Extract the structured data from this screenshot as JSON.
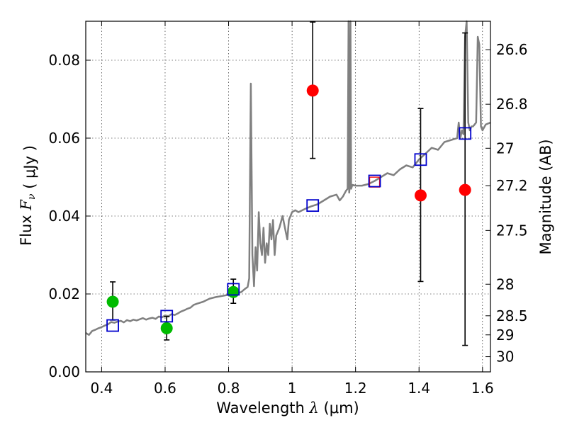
{
  "chart_data": {
    "type": "scatter",
    "xlabel": "Wavelength",
    "xlabel_math": "λ",
    "xlabel_unit": "(μm)",
    "ylabel_left": "Flux",
    "ylabel_left_math": "F",
    "ylabel_left_sub": "ν",
    "ylabel_left_unit": "( μJy )",
    "ylabel_right": "Magnitude (AB)",
    "xlim": [
      0.35,
      1.625
    ],
    "ylim": [
      0,
      0.09
    ],
    "grid": true,
    "x_ticks": [
      0.4,
      0.6,
      0.8,
      1.0,
      1.2,
      1.4,
      1.6
    ],
    "x_tick_labels": [
      "0.4",
      "0.6",
      "0.8",
      "1",
      "1.2",
      "1.4",
      "1.6"
    ],
    "y_ticks": [
      0.0,
      0.02,
      0.04,
      0.06,
      0.08
    ],
    "y_tick_labels": [
      "0.00",
      "0.02",
      "0.04",
      "0.06",
      "0.08"
    ],
    "right_ticks": [
      {
        "label": "26.6",
        "flux": 0.0827
      },
      {
        "label": "26.8",
        "flux": 0.0687
      },
      {
        "label": "27",
        "flux": 0.0574
      },
      {
        "label": "27.2",
        "flux": 0.0478
      },
      {
        "label": "27.5",
        "flux": 0.0363
      },
      {
        "label": "28",
        "flux": 0.0225
      },
      {
        "label": "28.5",
        "flux": 0.0144
      },
      {
        "label": "29",
        "flux": 0.0095
      },
      {
        "label": "30",
        "flux": 0.0039
      }
    ],
    "model_spectrum": {
      "name": "template spectrum",
      "color": "#808080",
      "x": [
        0.35,
        0.36,
        0.37,
        0.38,
        0.39,
        0.4,
        0.41,
        0.42,
        0.43,
        0.44,
        0.45,
        0.46,
        0.47,
        0.48,
        0.49,
        0.5,
        0.51,
        0.52,
        0.53,
        0.54,
        0.55,
        0.56,
        0.57,
        0.58,
        0.59,
        0.6,
        0.61,
        0.62,
        0.63,
        0.64,
        0.65,
        0.66,
        0.67,
        0.68,
        0.69,
        0.7,
        0.72,
        0.74,
        0.76,
        0.78,
        0.8,
        0.82,
        0.84,
        0.85,
        0.86,
        0.865,
        0.87,
        0.875,
        0.88,
        0.885,
        0.89,
        0.895,
        0.9,
        0.905,
        0.91,
        0.915,
        0.92,
        0.925,
        0.93,
        0.935,
        0.94,
        0.945,
        0.95,
        0.96,
        0.97,
        0.98,
        0.985,
        0.99,
        1.0,
        1.01,
        1.02,
        1.04,
        1.06,
        1.08,
        1.1,
        1.12,
        1.14,
        1.15,
        1.16,
        1.17,
        1.175,
        1.178,
        1.18,
        1.182,
        1.184,
        1.186,
        1.19,
        1.2,
        1.22,
        1.24,
        1.26,
        1.28,
        1.3,
        1.32,
        1.34,
        1.36,
        1.38,
        1.4,
        1.42,
        1.44,
        1.46,
        1.48,
        1.5,
        1.52,
        1.525,
        1.53,
        1.535,
        1.54,
        1.545,
        1.55,
        1.555,
        1.56,
        1.565,
        1.57,
        1.575,
        1.58,
        1.585,
        1.59,
        1.595,
        1.6,
        1.61,
        1.625
      ],
      "y": [
        0.01,
        0.0095,
        0.0105,
        0.0108,
        0.0112,
        0.0115,
        0.0119,
        0.0122,
        0.0128,
        0.0126,
        0.0129,
        0.0131,
        0.0127,
        0.0133,
        0.013,
        0.0134,
        0.0132,
        0.0135,
        0.0138,
        0.0134,
        0.0137,
        0.0139,
        0.0136,
        0.0142,
        0.014,
        0.0145,
        0.0143,
        0.0148,
        0.0146,
        0.015,
        0.0155,
        0.0158,
        0.0162,
        0.0165,
        0.0172,
        0.0175,
        0.018,
        0.0188,
        0.0192,
        0.0195,
        0.0198,
        0.02,
        0.0205,
        0.0212,
        0.0218,
        0.024,
        0.074,
        0.03,
        0.022,
        0.032,
        0.026,
        0.041,
        0.033,
        0.03,
        0.037,
        0.028,
        0.033,
        0.03,
        0.038,
        0.034,
        0.039,
        0.03,
        0.035,
        0.037,
        0.04,
        0.036,
        0.034,
        0.039,
        0.041,
        0.0415,
        0.041,
        0.0418,
        0.0425,
        0.043,
        0.044,
        0.045,
        0.0455,
        0.044,
        0.045,
        0.0465,
        0.047,
        0.091,
        0.046,
        0.048,
        0.091,
        0.047,
        0.048,
        0.0478,
        0.0478,
        0.0482,
        0.049,
        0.05,
        0.051,
        0.0505,
        0.052,
        0.053,
        0.0525,
        0.0545,
        0.056,
        0.0575,
        0.057,
        0.059,
        0.0595,
        0.06,
        0.064,
        0.06,
        0.062,
        0.061,
        0.086,
        0.091,
        0.064,
        0.062,
        0.063,
        0.063,
        0.0635,
        0.064,
        0.086,
        0.084,
        0.063,
        0.062,
        0.0635,
        0.064
      ]
    },
    "series": [
      {
        "name": "green points",
        "marker": "circle",
        "color": "#00bb00",
        "x": [
          0.435,
          0.605,
          0.815
        ],
        "y": [
          0.018,
          0.0112,
          0.0205
        ],
        "yerr_low": [
          0.0133,
          0.0082,
          0.0176
        ],
        "yerr_high": [
          0.0231,
          0.0142,
          0.0238
        ]
      },
      {
        "name": "red points",
        "marker": "circle",
        "color": "#ff0000",
        "x": [
          1.065,
          1.405,
          1.545
        ],
        "y": [
          0.0722,
          0.0453,
          0.0467
        ],
        "yerr_low": [
          0.0548,
          0.0232,
          0.0068
        ],
        "yerr_high": [
          0.0898,
          0.0676,
          0.087
        ]
      },
      {
        "name": "blue open squares",
        "marker": "square",
        "color": "#0000cc",
        "x": [
          0.435,
          0.605,
          0.815,
          1.065,
          1.26,
          1.405,
          1.545
        ],
        "y": [
          0.0119,
          0.0143,
          0.0212,
          0.0427,
          0.049,
          0.0545,
          0.0612
        ]
      }
    ],
    "extra_marks": [
      {
        "name": "red outline near 1.26",
        "marker": "square",
        "color": "#ff0000",
        "x": 1.26,
        "y": 0.0487
      }
    ]
  }
}
